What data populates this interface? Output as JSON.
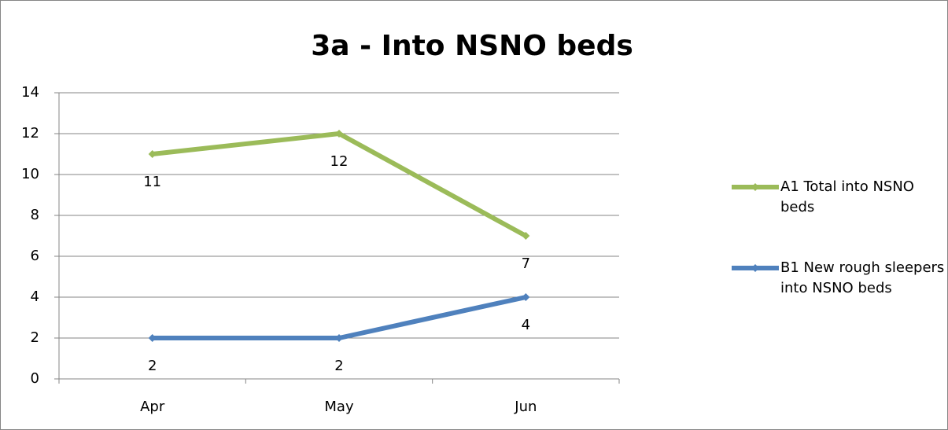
{
  "chart_data": {
    "type": "line",
    "title": "3a - Into NSNO beds",
    "categories": [
      "Apr",
      "May",
      "Jun"
    ],
    "series": [
      {
        "name": "A1 Total into NSNO beds",
        "color": "#9bbb59",
        "values": [
          11,
          12,
          7
        ]
      },
      {
        "name": "B1 New rough sleepers into NSNO beds",
        "color": "#4f81bd",
        "values": [
          2,
          2,
          4
        ]
      }
    ],
    "ylim": [
      0,
      14
    ],
    "yticks": [
      0,
      2,
      4,
      6,
      8,
      10,
      12,
      14
    ],
    "grid": true,
    "legend": "right"
  }
}
